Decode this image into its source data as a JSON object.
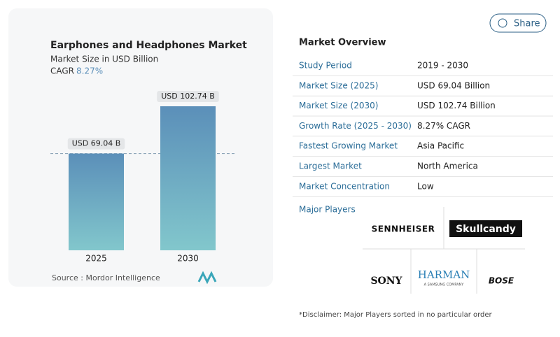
{
  "chart_data": {
    "type": "bar",
    "title": "Earphones and Headphones Market",
    "subtitle": "Market Size in USD Billion",
    "cagr_label": "CAGR",
    "cagr_value": "8.27%",
    "categories": [
      "2025",
      "2030"
    ],
    "values": [
      69.04,
      102.74
    ],
    "value_labels": [
      "USD 69.04 B",
      "USD 102.74 B"
    ],
    "source": "Source :  Mordor Intelligence"
  },
  "share": "Share",
  "overview": {
    "title": "Market Overview",
    "rows": [
      [
        "Study Period",
        "2019 - 2030"
      ],
      [
        "Market Size (2025)",
        "USD 69.04 Billion"
      ],
      [
        "Market Size (2030)",
        "USD 102.74 Billion"
      ],
      [
        "Growth Rate (2025 - 2030)",
        "8.27% CAGR"
      ],
      [
        "Fastest Growing Market",
        "Asia Pacific"
      ],
      [
        "Largest Market",
        "North America"
      ],
      [
        "Market Concentration",
        "Low"
      ]
    ]
  },
  "major_players": {
    "title": "Major Players",
    "logos": [
      "SENNHEISER",
      "Skullcandy",
      "SONY",
      "HARMAN",
      "BOSE"
    ],
    "harman_note": "A SAMSUNG COMPANY"
  },
  "disclaimer": "*Disclaimer: Major Players sorted in no particular order"
}
